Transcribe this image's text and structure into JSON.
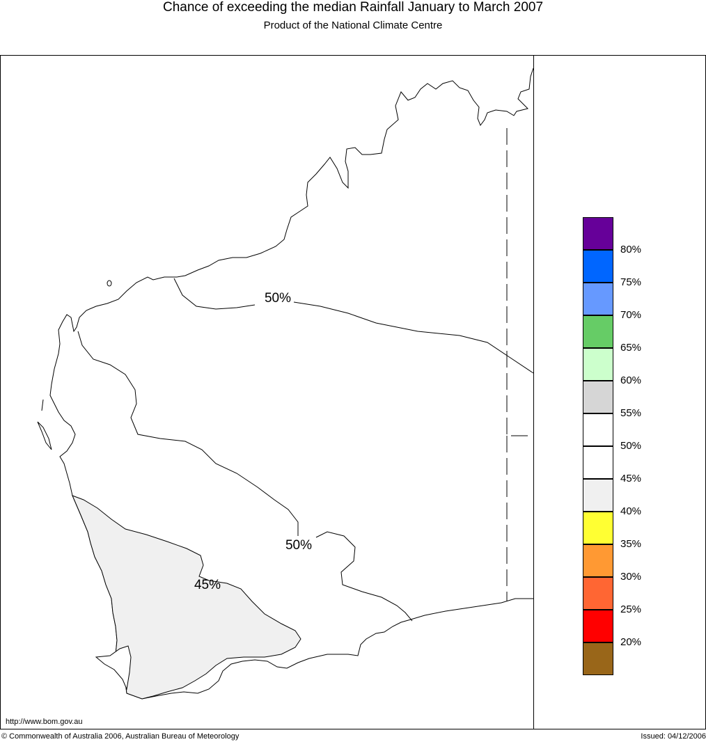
{
  "header": {
    "title": "Chance of exceeding the median Rainfall January to March 2007",
    "subtitle": "Product of the National Climate Centre"
  },
  "map": {
    "contour_labels": [
      "50%",
      "50%",
      "45%"
    ],
    "shaded_region_color": "#f0f0f0",
    "coast_color": "#000000"
  },
  "legend": {
    "swatches": [
      {
        "color": "#660099"
      },
      {
        "color": "#0066ff"
      },
      {
        "color": "#6699ff"
      },
      {
        "color": "#66cc66"
      },
      {
        "color": "#ccffcc"
      },
      {
        "color": "#d6d6d6"
      },
      {
        "color": "#ffffff"
      },
      {
        "color": "#ffffff"
      },
      {
        "color": "#f0f0f0"
      },
      {
        "color": "#ffff33"
      },
      {
        "color": "#ff9933"
      },
      {
        "color": "#ff6633"
      },
      {
        "color": "#ff0000"
      },
      {
        "color": "#996619"
      }
    ],
    "labels": [
      "80%",
      "75%",
      "70%",
      "65%",
      "60%",
      "55%",
      "50%",
      "45%",
      "40%",
      "35%",
      "30%",
      "25%",
      "20%"
    ]
  },
  "footer": {
    "url": "http://www.bom.gov.au",
    "copyright": "© Commonwealth of Australia 2006, Australian Bureau of Meteorology",
    "issued": "Issued: 04/12/2006"
  }
}
